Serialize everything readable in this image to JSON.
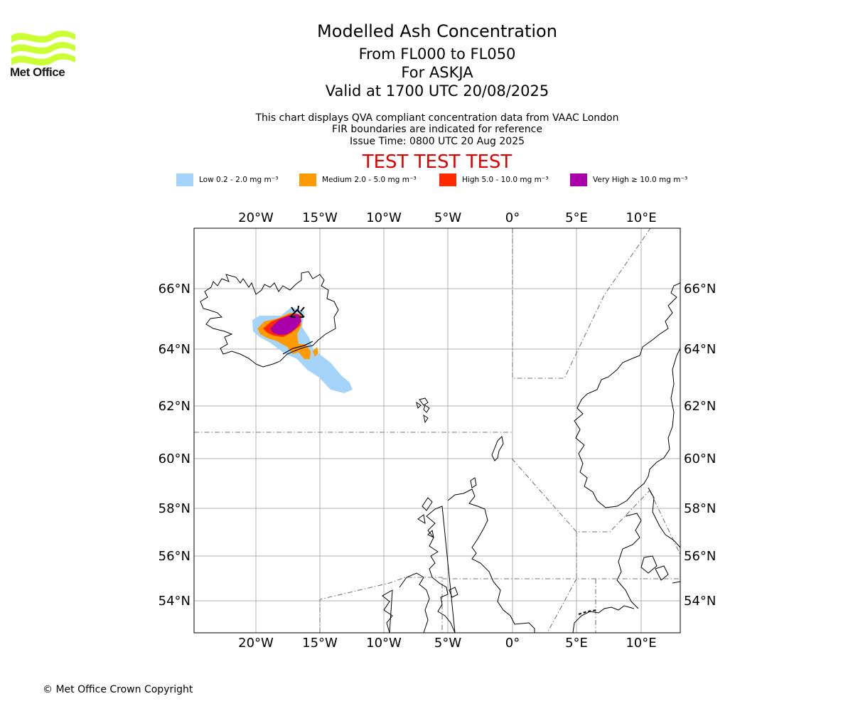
{
  "logo": {
    "text": "Met Office",
    "icon": "met-office-wave-logo",
    "color": "#ccff33"
  },
  "title": {
    "line1": "Modelled Ash Concentration",
    "line2": "From FL000 to FL050",
    "line3": "For ASKJA",
    "line4": "Valid at 1700 UTC 20/08/2025"
  },
  "subtitle": {
    "line1": "This chart displays QVA compliant concentration data from VAAC London",
    "line2": "FIR boundaries are indicated for reference",
    "line3": "Issue Time: 0800 UTC 20 Aug 2025"
  },
  "test_banner": "TEST TEST TEST",
  "legend": [
    {
      "label": "Low 0.2 - 2.0 mg m⁻³",
      "color": "#a5d4fa"
    },
    {
      "label": "Medium 2.0 - 5.0 mg m⁻³",
      "color": "#ff9a00"
    },
    {
      "label": "High 5.0 - 10.0 mg m⁻³",
      "color": "#ff2a00"
    },
    {
      "label": "Very High ≥ 10.0 mg m⁻³",
      "color": "#aa00aa"
    }
  ],
  "axes": {
    "lon_labels": [
      "20°W",
      "15°W",
      "10°W",
      "5°W",
      "0°",
      "5°E",
      "10°E"
    ],
    "lat_labels": [
      "66°N",
      "64°N",
      "62°N",
      "60°N",
      "58°N",
      "56°N",
      "54°N"
    ]
  },
  "copyright": "© Met Office Crown Copyright"
}
